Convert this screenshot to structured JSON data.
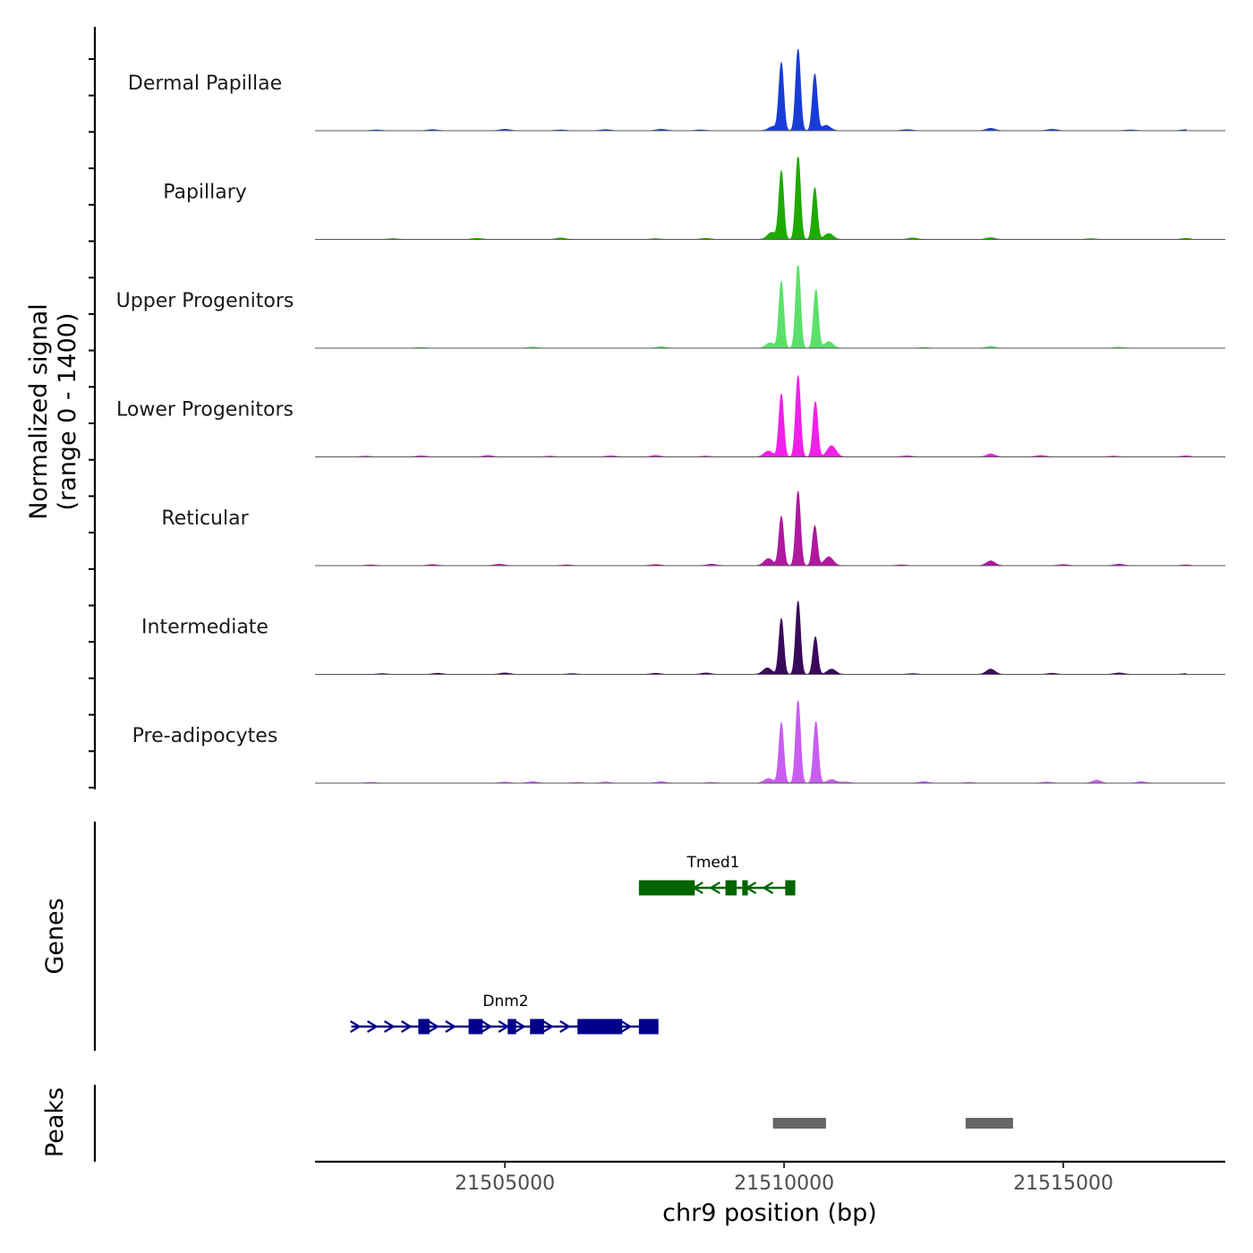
{
  "chart_data": {
    "type": "area",
    "title": "",
    "chromosome": "chr9",
    "xlabel": "chr9 position (bp)",
    "ylabel_line1": "Normalized signal",
    "ylabel_line2": "(range 0 - 1400)",
    "ylim": [
      0,
      1400
    ],
    "xlim": [
      21501600,
      21517900
    ],
    "x_ticks": [
      21505000,
      21510000,
      21515000
    ],
    "x_tick_labels": [
      "21505000",
      "21510000",
      "21515000"
    ],
    "tracks": [
      {
        "name": "Dermal Papillae",
        "color": "#1a3cd6",
        "peaks": [
          {
            "x": 21509800,
            "y": 70
          },
          {
            "x": 21509950,
            "y": 1150
          },
          {
            "x": 21510250,
            "y": 1390
          },
          {
            "x": 21510550,
            "y": 960
          },
          {
            "x": 21510750,
            "y": 90
          },
          {
            "x": 21513700,
            "y": 40
          }
        ],
        "noise": [
          21502700,
          21503700,
          21505000,
          21506000,
          21506800,
          21507800,
          21508500,
          21512200,
          21514800,
          21516200,
          21517200
        ]
      },
      {
        "name": "Papillary",
        "color": "#1faa00",
        "peaks": [
          {
            "x": 21509780,
            "y": 120
          },
          {
            "x": 21509950,
            "y": 1160
          },
          {
            "x": 21510250,
            "y": 1430
          },
          {
            "x": 21510550,
            "y": 880
          },
          {
            "x": 21510800,
            "y": 100
          },
          {
            "x": 21513700,
            "y": 30
          }
        ],
        "noise": [
          21503000,
          21504500,
          21506000,
          21507700,
          21508600,
          21512300,
          21515500,
          21517200
        ]
      },
      {
        "name": "Upper Progenitors",
        "color": "#5ce06b",
        "peaks": [
          {
            "x": 21509750,
            "y": 90
          },
          {
            "x": 21509950,
            "y": 1140
          },
          {
            "x": 21510250,
            "y": 1440
          },
          {
            "x": 21510570,
            "y": 1000
          },
          {
            "x": 21510800,
            "y": 110
          },
          {
            "x": 21513700,
            "y": 30
          }
        ],
        "noise": [
          21503500,
          21505500,
          21507800,
          21512500,
          21516000
        ]
      },
      {
        "name": "Lower Progenitors",
        "color": "#f020e8",
        "peaks": [
          {
            "x": 21509720,
            "y": 100
          },
          {
            "x": 21509950,
            "y": 1070
          },
          {
            "x": 21510250,
            "y": 1390
          },
          {
            "x": 21510560,
            "y": 940
          },
          {
            "x": 21510850,
            "y": 190
          },
          {
            "x": 21513700,
            "y": 50
          }
        ],
        "noise": [
          21502500,
          21503500,
          21504700,
          21505800,
          21506900,
          21507700,
          21508600,
          21512200,
          21514600,
          21515900,
          21517200
        ]
      },
      {
        "name": "Reticular",
        "color": "#b0189f",
        "peaks": [
          {
            "x": 21509720,
            "y": 120
          },
          {
            "x": 21509950,
            "y": 840
          },
          {
            "x": 21510250,
            "y": 1270
          },
          {
            "x": 21510550,
            "y": 680
          },
          {
            "x": 21510800,
            "y": 150
          },
          {
            "x": 21513700,
            "y": 80
          }
        ],
        "noise": [
          21502600,
          21503700,
          21504900,
          21506100,
          21507700,
          21508700,
          21512100,
          21515000,
          21516000,
          21517200
        ]
      },
      {
        "name": "Intermediate",
        "color": "#3a0a5a",
        "peaks": [
          {
            "x": 21509700,
            "y": 110
          },
          {
            "x": 21509950,
            "y": 950
          },
          {
            "x": 21510250,
            "y": 1250
          },
          {
            "x": 21510560,
            "y": 640
          },
          {
            "x": 21510850,
            "y": 90
          },
          {
            "x": 21513700,
            "y": 90
          }
        ],
        "noise": [
          21502800,
          21503800,
          21505000,
          21506200,
          21507700,
          21508600,
          21512300,
          21514800,
          21516000,
          21517200
        ]
      },
      {
        "name": "Pre-adipocytes",
        "color": "#c85ef0",
        "peaks": [
          {
            "x": 21509720,
            "y": 80
          },
          {
            "x": 21509950,
            "y": 1030
          },
          {
            "x": 21510250,
            "y": 1420
          },
          {
            "x": 21510570,
            "y": 1050
          },
          {
            "x": 21510850,
            "y": 60
          },
          {
            "x": 21515600,
            "y": 50
          }
        ],
        "noise": [
          21502600,
          21505000,
          21505500,
          21506300,
          21506800,
          21507800,
          21508700,
          21511100,
          21512500,
          21513300,
          21514700,
          21516400
        ]
      }
    ],
    "genes_label": "Genes",
    "genes": [
      {
        "name": "Tmed1",
        "strand": "-",
        "color": "#006400",
        "start": 21507400,
        "end": 21510200,
        "exons": [
          [
            21507400,
            21508400
          ],
          [
            21508950,
            21509150
          ],
          [
            21509250,
            21509350
          ],
          [
            21510020,
            21510200
          ]
        ]
      },
      {
        "name": "Dnm2",
        "strand": "+",
        "color": "#00008b",
        "start": 21502250,
        "end": 21507750,
        "exons": [
          [
            21503450,
            21503650
          ],
          [
            21504350,
            21504600
          ],
          [
            21505050,
            21505200
          ],
          [
            21505450,
            21505700
          ],
          [
            21506300,
            21507100
          ],
          [
            21507400,
            21507750
          ]
        ]
      }
    ],
    "peaks_label": "Peaks",
    "peaks_color": "#666666",
    "peak_regions": [
      [
        21509800,
        21510750
      ],
      [
        21513250,
        21514100
      ]
    ]
  }
}
